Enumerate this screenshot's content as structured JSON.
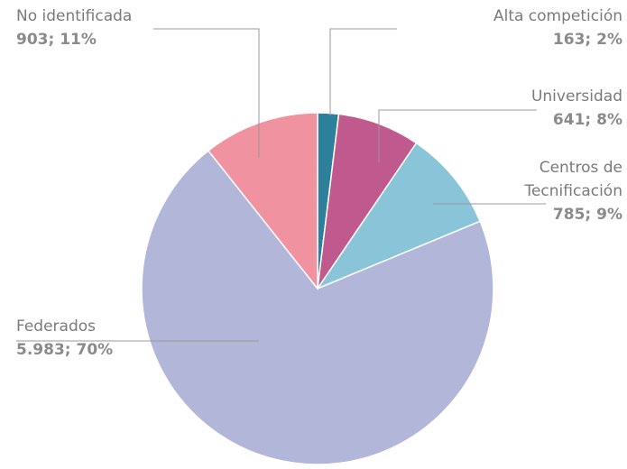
{
  "chart_data": {
    "type": "pie",
    "categories": [
      "Alta competición",
      "Universidad",
      "Centros de Tecnificación",
      "Federados",
      "No identificada"
    ],
    "values": [
      163,
      641,
      785,
      5983,
      903
    ],
    "value_labels": [
      "163; 2%",
      "641; 8%",
      "785; 9%",
      "5.983; 70%",
      "903; 11%"
    ],
    "colors": [
      "#2e7f9a",
      "#c05a8e",
      "#8ac4d9",
      "#b2b6d8",
      "#f0929f"
    ]
  }
}
